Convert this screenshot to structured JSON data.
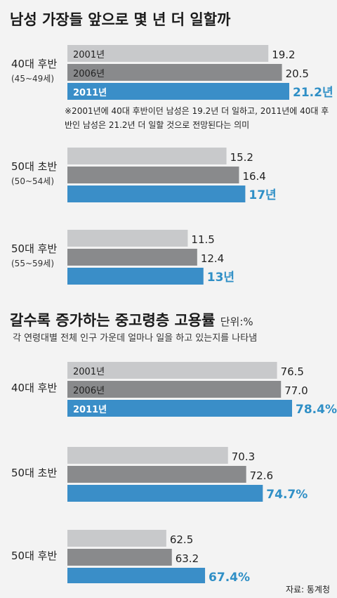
{
  "section1": {
    "title": "남성 가장들 앞으로 몇 년 더 일할까",
    "note": "※2001년에 40대 후반이던 남성은 19.2년 더 일하고, 2011년에 40대 후반인 남성은 21.2년 더 일할 것으로 전망된다는 의미"
  },
  "section2": {
    "title": "갈수록 증가하는 중고령층 고용률",
    "unit": "단위:%",
    "subtitle": "각 연령대별 전체 인구 가운데 얼마나 일을 하고 있는지를 나타냄"
  },
  "source": "자료: 통계청",
  "colors": {
    "bar_2001": "#c8c9cb",
    "bar_2006": "#898a8c",
    "bar_2011": "#3a8ec8",
    "highlight_text": "#2f8fc6"
  },
  "chart_data": [
    {
      "type": "bar",
      "orientation": "horizontal",
      "categories": [
        "40대 후반",
        "50대 초반",
        "50대 후반"
      ],
      "category_subs": [
        "(45~49세)",
        "(50~54세)",
        "(55~59세)"
      ],
      "series": [
        {
          "name": "2001년",
          "values": [
            19.2,
            15.2,
            11.5
          ],
          "labels": [
            "19.2",
            "15.2",
            "11.5"
          ]
        },
        {
          "name": "2006년",
          "values": [
            20.5,
            16.4,
            12.4
          ],
          "labels": [
            "20.5",
            "16.4",
            "12.4"
          ]
        },
        {
          "name": "2011년",
          "values": [
            21.2,
            17,
            13
          ],
          "labels": [
            "21.2년",
            "17년",
            "13년"
          ]
        }
      ]
    },
    {
      "type": "bar",
      "orientation": "horizontal",
      "categories": [
        "40대 후반",
        "50대 초반",
        "50대 후반"
      ],
      "series": [
        {
          "name": "2001년",
          "values": [
            76.5,
            70.3,
            62.5
          ],
          "labels": [
            "76.5",
            "70.3",
            "62.5"
          ]
        },
        {
          "name": "2006년",
          "values": [
            77.0,
            72.6,
            63.2
          ],
          "labels": [
            "77.0",
            "72.6",
            "63.2"
          ]
        },
        {
          "name": "2011년",
          "values": [
            78.4,
            74.7,
            67.4
          ],
          "labels": [
            "78.4%",
            "74.7%",
            "67.4%"
          ]
        }
      ]
    }
  ]
}
